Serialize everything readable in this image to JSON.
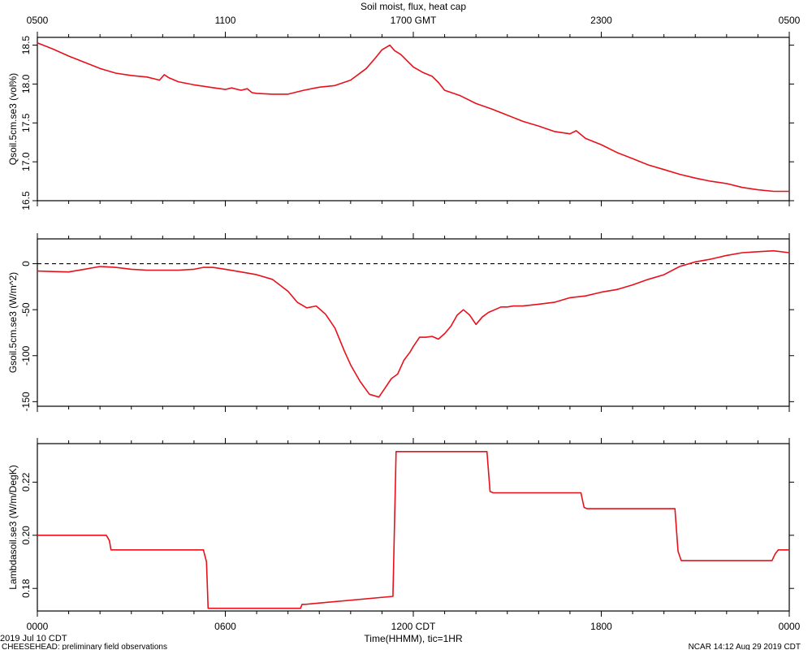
{
  "title": "Soil moist, flux, heat cap",
  "top_axis": {
    "ticks": [
      "0500",
      "1100",
      "1700 GMT",
      "2300",
      "0500"
    ]
  },
  "bottom_axis": {
    "ticks": [
      "0000",
      "0600",
      "1200 CDT",
      "1800",
      "0000"
    ],
    "xlabel": "Time(HHMM), tic=1HR"
  },
  "footer": {
    "date": "2019 Jul 10 CDT",
    "project": "CHEESEHEAD: preliminary field observations",
    "stamp": "NCAR 14:12 Aug 29 2019 CDT"
  },
  "colors": {
    "series": "#e8101a",
    "axes": "#000000",
    "zero_line": "#000000"
  },
  "chart_data": [
    {
      "type": "line",
      "ylabel": "Qsoil.5cm.se3 (vol%)",
      "xlim": [
        0,
        24
      ],
      "ylim": [
        16.5,
        18.6
      ],
      "yticks": [
        16.5,
        17.0,
        17.5,
        18.0,
        18.5
      ],
      "ytick_labels": [
        "16.5",
        "17.0",
        "17.5",
        "18.0",
        "18.5"
      ],
      "grid": false,
      "x": [
        0,
        0.5,
        1.0,
        1.5,
        2.0,
        2.5,
        3.0,
        3.5,
        3.9,
        4.05,
        4.2,
        4.5,
        5.0,
        5.5,
        6.0,
        6.2,
        6.5,
        6.7,
        6.85,
        7.0,
        7.5,
        8.0,
        8.5,
        9.0,
        9.5,
        10.0,
        10.5,
        10.8,
        11.0,
        11.25,
        11.4,
        11.6,
        11.8,
        12.0,
        12.3,
        12.6,
        12.8,
        13.0,
        13.5,
        14.0,
        14.5,
        15.0,
        15.5,
        16.0,
        16.5,
        17.0,
        17.2,
        17.5,
        18.0,
        18.5,
        19.0,
        19.5,
        20.0,
        20.5,
        21.0,
        21.5,
        22.0,
        22.5,
        23.0,
        23.5,
        24.0
      ],
      "y": [
        18.53,
        18.45,
        18.36,
        18.28,
        18.2,
        18.14,
        18.11,
        18.09,
        18.05,
        18.12,
        18.08,
        18.03,
        17.99,
        17.96,
        17.93,
        17.95,
        17.92,
        17.94,
        17.89,
        17.88,
        17.87,
        17.87,
        17.92,
        17.96,
        17.98,
        18.05,
        18.2,
        18.34,
        18.44,
        18.5,
        18.43,
        18.38,
        18.3,
        18.22,
        18.15,
        18.1,
        18.02,
        17.92,
        17.85,
        17.75,
        17.68,
        17.6,
        17.52,
        17.46,
        17.39,
        17.36,
        17.4,
        17.3,
        17.22,
        17.12,
        17.04,
        16.96,
        16.9,
        16.84,
        16.79,
        16.75,
        16.72,
        16.67,
        16.64,
        16.62,
        16.62
      ]
    },
    {
      "type": "line",
      "ylabel": "Gsoil.5cm.se3 (W/m^2)",
      "xlim": [
        0,
        24
      ],
      "ylim": [
        -155,
        27
      ],
      "yticks": [
        -150,
        -100,
        -50,
        0
      ],
      "ytick_labels": [
        "-150",
        "-100",
        "-50",
        "0"
      ],
      "zero_line": true,
      "grid": false,
      "x": [
        0,
        0.5,
        1.0,
        1.5,
        2.0,
        2.5,
        3.0,
        3.5,
        4.0,
        4.5,
        5.0,
        5.3,
        5.6,
        6.0,
        6.5,
        7.0,
        7.5,
        8.0,
        8.3,
        8.6,
        8.9,
        9.2,
        9.5,
        9.8,
        10.0,
        10.3,
        10.6,
        10.9,
        11.1,
        11.3,
        11.5,
        11.7,
        11.9,
        12.0,
        12.2,
        12.4,
        12.6,
        12.8,
        13.0,
        13.2,
        13.4,
        13.6,
        13.8,
        14.0,
        14.2,
        14.4,
        14.6,
        14.8,
        15.0,
        15.2,
        15.5,
        16.0,
        16.5,
        17.0,
        17.5,
        18.0,
        18.5,
        19.0,
        19.5,
        20.0,
        20.5,
        21.0,
        21.5,
        22.0,
        22.5,
        23.0,
        23.5,
        24.0
      ],
      "y": [
        -8,
        -8.5,
        -9,
        -6,
        -3,
        -4,
        -6,
        -7,
        -7,
        -7,
        -6,
        -4,
        -4,
        -6,
        -9,
        -12,
        -17,
        -30,
        -42,
        -48,
        -46,
        -55,
        -70,
        -95,
        -110,
        -128,
        -142,
        -145,
        -135,
        -125,
        -120,
        -105,
        -96,
        -90,
        -80,
        -80,
        -79,
        -82,
        -76,
        -68,
        -56,
        -50,
        -56,
        -66,
        -58,
        -53,
        -50,
        -47,
        -47,
        -46,
        -46,
        -44,
        -42,
        -37,
        -35,
        -31,
        -28,
        -23,
        -17,
        -12,
        -3,
        2,
        5,
        9,
        12,
        13,
        14,
        12
      ]
    },
    {
      "type": "line",
      "ylabel": "Lambdasoil.se3 (W/m/DegK)",
      "xlim": [
        0,
        24
      ],
      "ylim": [
        0.1715,
        0.2345
      ],
      "yticks": [
        0.18,
        0.2,
        0.22
      ],
      "ytick_labels": [
        "0.18",
        "0.20",
        "0.22"
      ],
      "grid": false,
      "x": [
        0,
        2.2,
        2.3,
        2.35,
        5.3,
        5.4,
        5.45,
        8.4,
        8.45,
        8.55,
        11.35,
        11.45,
        11.5,
        14.35,
        14.45,
        14.55,
        17.35,
        17.45,
        17.55,
        20.35,
        20.45,
        20.55,
        23.45,
        23.55,
        23.65,
        24.0
      ],
      "y": [
        0.2,
        0.2,
        0.198,
        0.1945,
        0.1945,
        0.19,
        0.1725,
        0.1725,
        0.174,
        0.174,
        0.177,
        0.2315,
        0.2315,
        0.2315,
        0.2165,
        0.216,
        0.216,
        0.2105,
        0.21,
        0.21,
        0.194,
        0.1905,
        0.1905,
        0.193,
        0.1945,
        0.1945
      ]
    }
  ]
}
